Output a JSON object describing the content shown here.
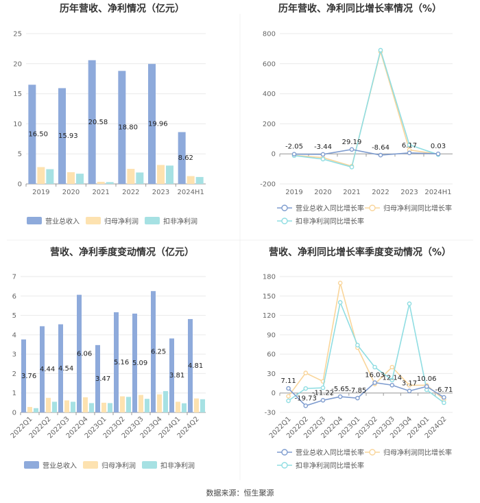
{
  "colors": {
    "revenue": "#8eaadb",
    "parent": "#fde2b0",
    "deduct": "#a6e1e3",
    "grid": "#e9e9e9",
    "axis": "#999999"
  },
  "footer": "数据来源：恒生聚源",
  "panels": [
    {
      "title": "历年营收、净利情况（亿元）",
      "legend": [
        "营业总收入",
        "归母净利润",
        "扣非净利润"
      ],
      "chart_data": {
        "type": "bar",
        "categories": [
          "2019",
          "2020",
          "2021",
          "2022",
          "2023",
          "2024H1"
        ],
        "ylim": [
          0,
          25
        ],
        "yticks": [
          "0",
          "5",
          "10",
          "15",
          "20",
          "25"
        ],
        "series": [
          {
            "name": "营业总收入",
            "values": [
              16.5,
              15.93,
              20.58,
              18.8,
              19.96,
              8.62
            ]
          },
          {
            "name": "归母净利润",
            "values": [
              2.8,
              1.95,
              0.35,
              2.5,
              3.15,
              1.3
            ]
          },
          {
            "name": "扣非净利润",
            "values": [
              2.45,
              1.7,
              0.3,
              1.9,
              3.05,
              1.15
            ]
          }
        ],
        "data_labels": [
          "16.50",
          "15.93",
          "20.58",
          "18.80",
          "19.96",
          "8.62"
        ]
      }
    },
    {
      "title": "历年营收、净利同比增长率情况（%）",
      "legend": [
        "营业总收入同比增长率",
        "归母净利润同比增长率",
        "扣非净利润同比增长率"
      ],
      "chart_data": {
        "type": "line",
        "categories": [
          "2019",
          "2020",
          "2021",
          "2022",
          "2023",
          "2024H1"
        ],
        "ylim": [
          -200,
          800
        ],
        "yticks": [
          "-200",
          "0",
          "200",
          "400",
          "600",
          "800"
        ],
        "series": [
          {
            "name": "营业总收入同比增长率",
            "values": [
              -2.05,
              -3.44,
              29.19,
              -8.64,
              6.17,
              0.03
            ]
          },
          {
            "name": "归母净利润同比增长率",
            "values": [
              -10,
              -25,
              -82,
              680,
              26,
              -2
            ]
          },
          {
            "name": "扣非净利润同比增长率",
            "values": [
              -12,
              -35,
              -88,
              690,
              60,
              -5
            ]
          }
        ],
        "data_labels": [
          "-2.05",
          "-3.44",
          "29.19",
          "-8.64",
          "6.17",
          "0.03"
        ]
      }
    },
    {
      "title": "营收、净利季度变动情况（亿元）",
      "legend": [
        "营业总收入",
        "归母净利润",
        "扣非净利润"
      ],
      "chart_data": {
        "type": "bar",
        "categories": [
          "2022Q1",
          "2022Q2",
          "2022Q3",
          "2022Q4",
          "2023Q1",
          "2023Q2",
          "2023Q3",
          "2023Q4",
          "2024Q1",
          "2024Q2"
        ],
        "ylim": [
          0,
          7
        ],
        "yticks": [
          "0",
          "1",
          "2",
          "3",
          "4",
          "5",
          "6",
          "7"
        ],
        "series": [
          {
            "name": "营业总收入",
            "values": [
              3.76,
              4.44,
              4.54,
              6.06,
              3.47,
              5.16,
              5.09,
              6.25,
              3.81,
              4.81
            ]
          },
          {
            "name": "归母净利润",
            "values": [
              0.28,
              0.75,
              0.62,
              0.78,
              0.5,
              0.83,
              0.9,
              0.93,
              0.55,
              0.72
            ]
          },
          {
            "name": "扣非净利润",
            "values": [
              0.22,
              0.55,
              0.55,
              0.48,
              0.48,
              0.8,
              0.7,
              1.1,
              0.47,
              0.68
            ]
          }
        ],
        "data_labels": [
          "3.76",
          "4.44",
          "4.54",
          "6.06",
          "3.47",
          "5.16",
          "5.09",
          "6.25",
          "3.81",
          "4.81"
        ]
      }
    },
    {
      "title": "营收、净利同比增长率季度变动情况（%）",
      "legend": [
        "营业总收入同比增长率",
        "归母净利润同比增长率",
        "扣非净利润同比增长率"
      ],
      "chart_data": {
        "type": "line",
        "categories": [
          "2022Q1",
          "2022Q2",
          "2022Q3",
          "2022Q4",
          "2023Q1",
          "2023Q2",
          "2023Q3",
          "2023Q4",
          "2024Q1",
          "2024Q2"
        ],
        "ylim": [
          -30,
          180
        ],
        "yticks": [
          "-30",
          "0",
          "30",
          "60",
          "90",
          "120",
          "150",
          "180"
        ],
        "series": [
          {
            "name": "营业总收入同比增长率",
            "values": [
              7.11,
              -19.73,
              -11.22,
              -5.65,
              -7.85,
              16.03,
              12.14,
              3.17,
              10.06,
              -6.71
            ]
          },
          {
            "name": "归母净利润同比增长率",
            "values": [
              -5,
              31,
              18,
              170,
              70,
              14,
              40,
              12,
              12,
              -10
            ]
          },
          {
            "name": "扣非净利润同比增长率",
            "values": [
              -12,
              7,
              8,
              140,
              74,
              40,
              20,
              138,
              5,
              -15
            ]
          }
        ],
        "data_labels": [
          "7.11",
          "-19.73",
          "-11.22",
          "-5.65",
          "-7.85",
          "16.03",
          "12.14",
          "3.17",
          "10.06",
          "-6.71"
        ]
      }
    }
  ]
}
